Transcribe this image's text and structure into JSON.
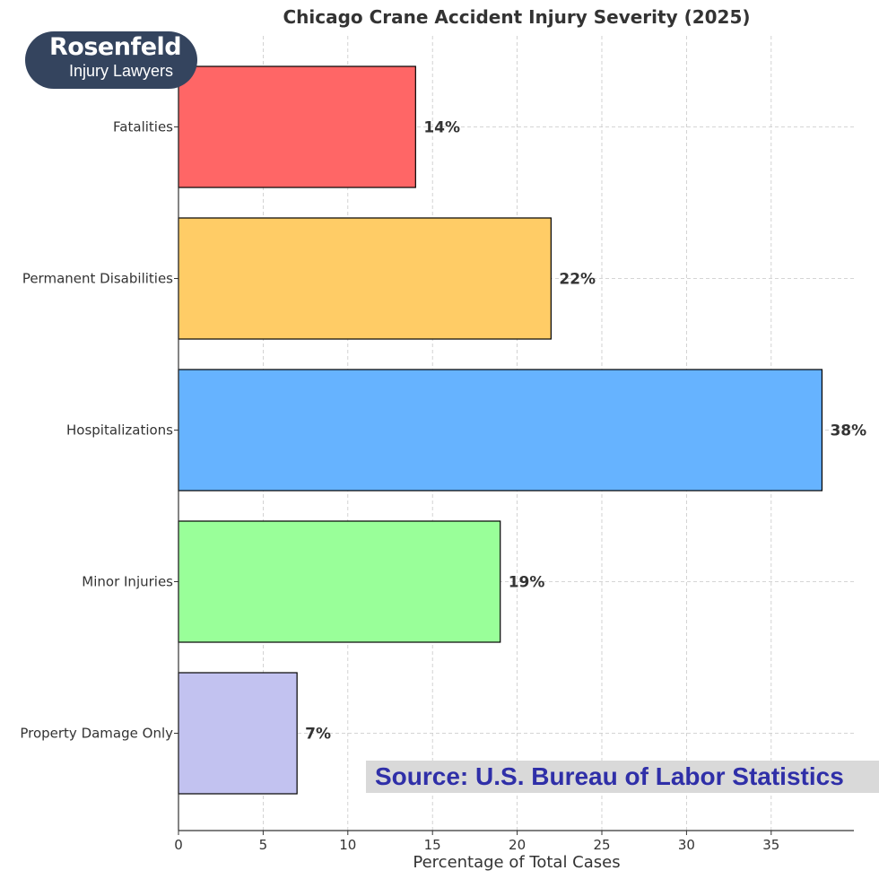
{
  "chart_data": {
    "type": "bar",
    "orientation": "horizontal",
    "title": "Chicago Crane Accident Injury Severity (2025)",
    "xlabel": "Percentage of Total Cases",
    "ylabel": "",
    "categories": [
      "Fatalities",
      "Permanent Disabilities",
      "Hospitalizations",
      "Minor Injuries",
      "Property Damage Only"
    ],
    "values": [
      14,
      22,
      38,
      19,
      7
    ],
    "value_labels": [
      "14%",
      "22%",
      "38%",
      "19%",
      "7%"
    ],
    "colors": [
      "#ff6666",
      "#ffcc66",
      "#66b3ff",
      "#99ff99",
      "#c2c2f0"
    ],
    "xlim": [
      0,
      40
    ],
    "xticks": [
      0,
      5,
      10,
      15,
      20,
      25,
      30,
      35
    ],
    "grid": true
  },
  "logo": {
    "name": "Rosenfeld",
    "subtitle": "Injury Lawyers"
  },
  "source_note": "Source: U.S. Bureau of Labor Statistics"
}
